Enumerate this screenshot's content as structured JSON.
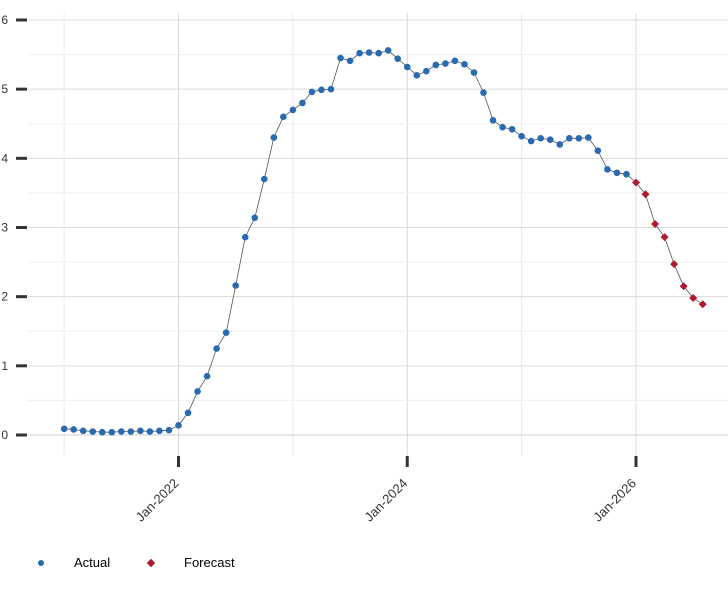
{
  "chart_data": {
    "type": "line",
    "ylim": [
      -0.3,
      6.1
    ],
    "yticks": [
      0,
      1,
      2,
      3,
      4,
      5,
      6
    ],
    "ytick_labels": [
      "0",
      "1",
      "2",
      "3",
      "4",
      "5",
      "6"
    ],
    "xticks": [
      "2022-01",
      "2024-01",
      "2026-01"
    ],
    "xtick_labels": [
      "Jan-2022",
      "Jan-2024",
      "Jan-2026"
    ],
    "grid": true,
    "legend_position": "bottom-left",
    "series": [
      {
        "name": "Actual",
        "marker": "circle",
        "color": "#2a6ab0",
        "points": [
          [
            "2021-01",
            0.09
          ],
          [
            "2021-02",
            0.08
          ],
          [
            "2021-03",
            0.06
          ],
          [
            "2021-04",
            0.05
          ],
          [
            "2021-05",
            0.04
          ],
          [
            "2021-06",
            0.04
          ],
          [
            "2021-07",
            0.05
          ],
          [
            "2021-08",
            0.05
          ],
          [
            "2021-09",
            0.06
          ],
          [
            "2021-10",
            0.05
          ],
          [
            "2021-11",
            0.06
          ],
          [
            "2021-12",
            0.07
          ],
          [
            "2022-01",
            0.14
          ],
          [
            "2022-02",
            0.32
          ],
          [
            "2022-03",
            0.63
          ],
          [
            "2022-04",
            0.85
          ],
          [
            "2022-05",
            1.25
          ],
          [
            "2022-06",
            1.48
          ],
          [
            "2022-07",
            2.16
          ],
          [
            "2022-08",
            2.86
          ],
          [
            "2022-09",
            3.14
          ],
          [
            "2022-10",
            3.7
          ],
          [
            "2022-11",
            4.3
          ],
          [
            "2022-12",
            4.6
          ],
          [
            "2023-01",
            4.7
          ],
          [
            "2023-02",
            4.8
          ],
          [
            "2023-03",
            4.96
          ],
          [
            "2023-04",
            4.99
          ],
          [
            "2023-05",
            5.0
          ],
          [
            "2023-06",
            5.45
          ],
          [
            "2023-07",
            5.41
          ],
          [
            "2023-08",
            5.52
          ],
          [
            "2023-09",
            5.53
          ],
          [
            "2023-10",
            5.52
          ],
          [
            "2023-11",
            5.56
          ],
          [
            "2023-12",
            5.44
          ],
          [
            "2024-01",
            5.32
          ],
          [
            "2024-02",
            5.2
          ],
          [
            "2024-03",
            5.26
          ],
          [
            "2024-04",
            5.35
          ],
          [
            "2024-05",
            5.37
          ],
          [
            "2024-06",
            5.41
          ],
          [
            "2024-07",
            5.36
          ],
          [
            "2024-08",
            5.24
          ],
          [
            "2024-09",
            4.95
          ],
          [
            "2024-10",
            4.55
          ],
          [
            "2024-11",
            4.45
          ],
          [
            "2024-12",
            4.42
          ],
          [
            "2025-01",
            4.32
          ],
          [
            "2025-02",
            4.25
          ],
          [
            "2025-03",
            4.29
          ],
          [
            "2025-04",
            4.27
          ],
          [
            "2025-05",
            4.2
          ],
          [
            "2025-06",
            4.29
          ],
          [
            "2025-07",
            4.29
          ],
          [
            "2025-08",
            4.3
          ],
          [
            "2025-09",
            4.11
          ],
          [
            "2025-10",
            3.84
          ],
          [
            "2025-11",
            3.79
          ],
          [
            "2025-12",
            3.77
          ]
        ]
      },
      {
        "name": "Forecast",
        "marker": "diamond",
        "color": "#b01a30",
        "points": [
          [
            "2025-12",
            3.77
          ],
          [
            "2026-01",
            3.65
          ],
          [
            "2026-02",
            3.48
          ],
          [
            "2026-03",
            3.05
          ],
          [
            "2026-04",
            2.86
          ],
          [
            "2026-05",
            2.47
          ],
          [
            "2026-06",
            2.15
          ],
          [
            "2026-07",
            1.98
          ],
          [
            "2026-08",
            1.89
          ]
        ]
      }
    ]
  }
}
